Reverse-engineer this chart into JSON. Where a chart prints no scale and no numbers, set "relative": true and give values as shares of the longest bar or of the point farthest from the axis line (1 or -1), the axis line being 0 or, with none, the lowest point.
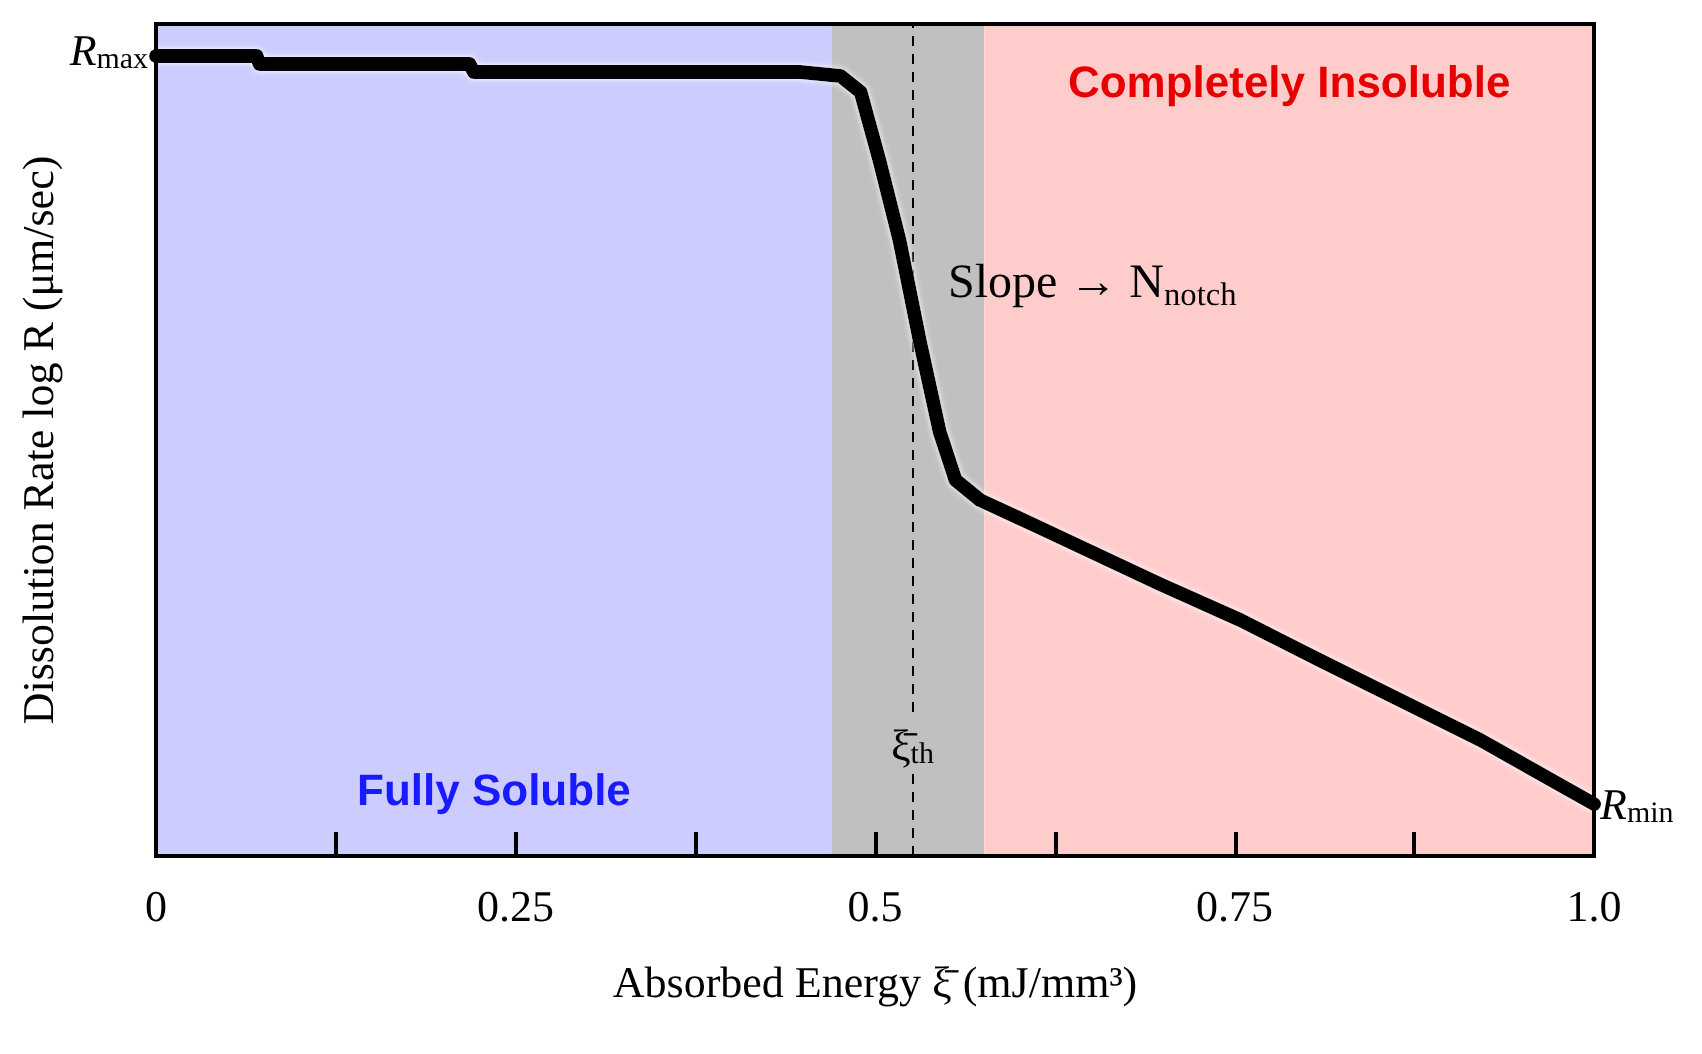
{
  "chart_data": {
    "type": "line",
    "relative": true,
    "xlabel": "Absorbed Energy ξ̄ (mJ/mm³)",
    "ylabel": "Dissolution Rate log R (μm/sec)",
    "x": [
      0,
      0.07,
      0.072,
      0.218,
      0.221,
      0.344,
      0.346,
      0.448,
      0.476,
      0.49,
      0.503,
      0.517,
      0.531,
      0.545,
      0.556,
      0.573,
      0.615,
      0.698,
      0.754,
      0.809,
      0.865,
      0.921,
      1.0
    ],
    "series": [
      {
        "color": "#000000",
        "values": [
          1.0,
          1.0,
          0.99,
          0.99,
          0.98,
          0.98,
          0.98,
          0.98,
          0.975,
          0.955,
          0.87,
          0.77,
          0.645,
          0.53,
          0.47,
          0.445,
          0.41,
          0.34,
          0.295,
          0.245,
          0.195,
          0.145,
          0.065
        ]
      }
    ],
    "xlim": [
      0,
      1.0
    ],
    "xticks": [
      0,
      {
        "value": 0.125,
        "label": null
      },
      0.25,
      {
        "value": 0.375,
        "label": null
      },
      0.5,
      {
        "value": 0.625,
        "label": null
      },
      0.75,
      {
        "value": 0.875,
        "label": null
      },
      {
        "value": 1.0,
        "label": "1.0"
      }
    ],
    "bands": [
      {
        "axis": "x",
        "from": 0,
        "to": 0.47,
        "label": "Fully Soluble",
        "color": "#ccccff"
      },
      {
        "axis": "x",
        "from": 0.47,
        "to": 0.576,
        "color": "#c0c0c0"
      },
      {
        "axis": "x",
        "from": 0.576,
        "to": 1.0,
        "label": "Completely Insoluble",
        "color": "#ffcccc"
      }
    ],
    "ref_lines": [
      {
        "axis": "x",
        "value": 0.526,
        "label": "ξ̄$_{th}$",
        "color": "#000000",
        "line_style": "dashed"
      }
    ],
    "annotations": [
      {
        "text": "R$_{max}$",
        "x": 0,
        "y": 1.0
      },
      {
        "text": "R$_{min}$",
        "x": 1.0,
        "y": 0.065
      },
      "Slope → N$_{notch}$"
    ],
    "grid": false,
    "line_style": "solid"
  }
}
